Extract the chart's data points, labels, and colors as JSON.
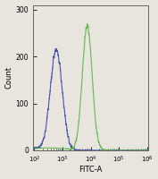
{
  "title": "",
  "xlabel": "FITC-A",
  "ylabel": "Count",
  "ylim": [
    0,
    310
  ],
  "yticks": [
    0,
    100,
    200,
    300
  ],
  "background_color": "#e8e4de",
  "plot_bg_color": "#e8e4de",
  "border_color": "#888888",
  "blue_color": "#3d4eaa",
  "green_color": "#5ab94a",
  "blue_peak_log": 2.78,
  "blue_peak_count": 215,
  "blue_sigma_log": 0.21,
  "green_peak_log": 3.88,
  "green_peak_count": 265,
  "green_sigma_log": 0.175,
  "figsize": [
    1.77,
    2.0
  ],
  "dpi": 100,
  "xlog_min": 1.95,
  "xlog_max": 6.05
}
